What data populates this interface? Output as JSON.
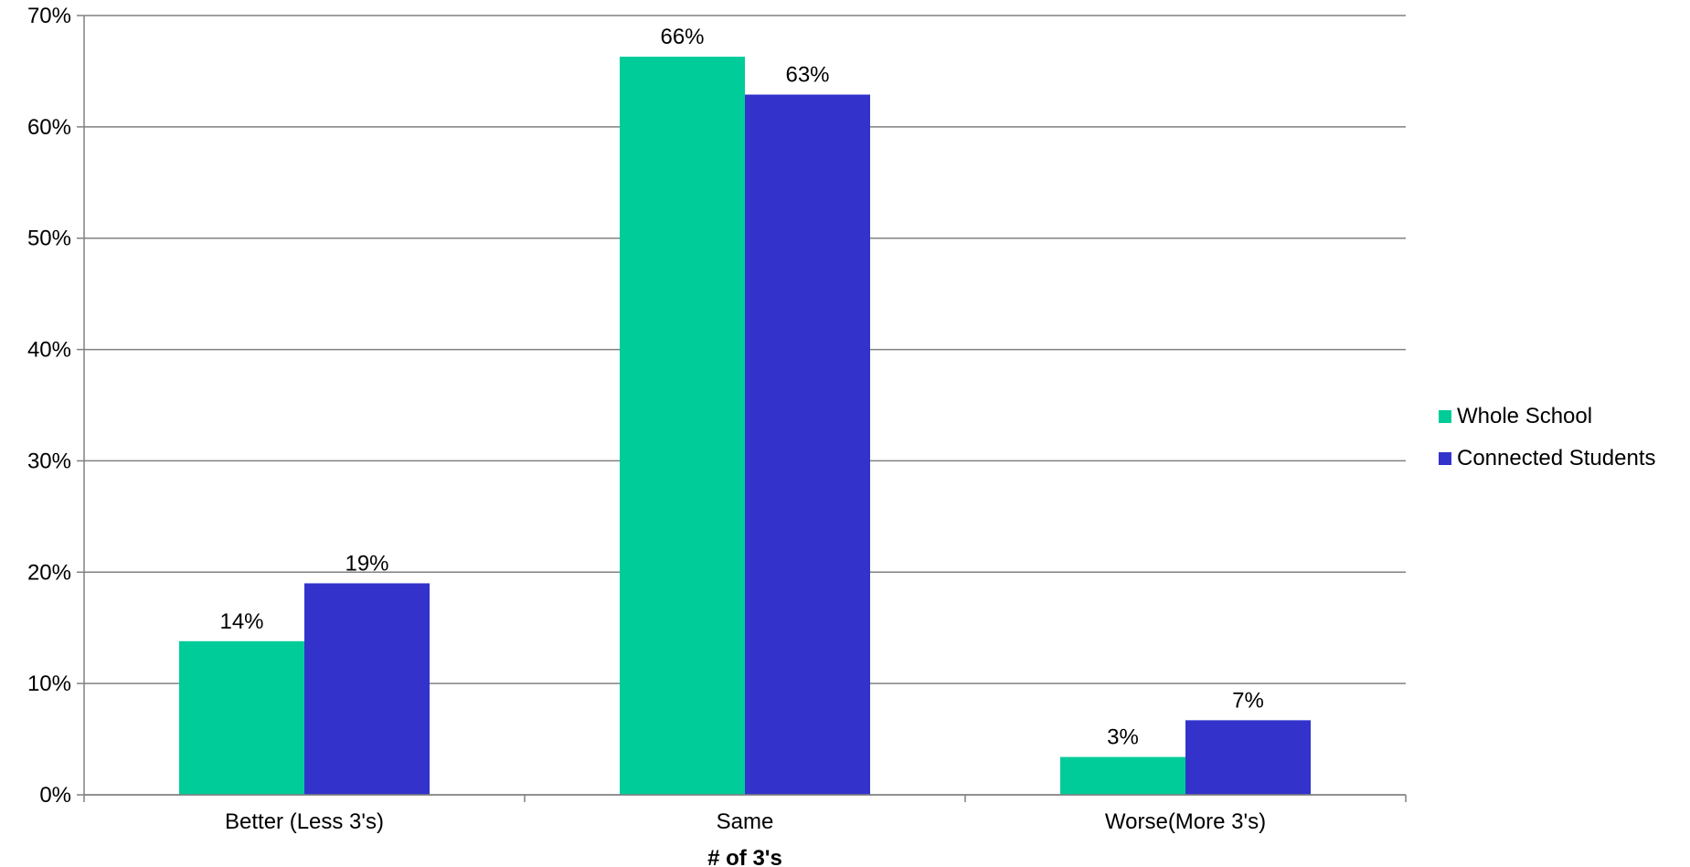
{
  "chart_data": {
    "type": "bar",
    "title": "",
    "xlabel": "# of 3's",
    "ylabel": "",
    "categories": [
      "Better (Less 3's)",
      "Same",
      "Worse(More 3's)"
    ],
    "series": [
      {
        "name": "Whole School",
        "color": "#00CC99",
        "values": [
          13.8,
          66.3,
          3.4
        ],
        "labels": [
          "14%",
          "66%",
          "3%"
        ]
      },
      {
        "name": "Connected Students",
        "color": "#3333CC",
        "values": [
          19.0,
          62.9,
          6.7
        ],
        "labels": [
          "19%",
          "63%",
          "7%"
        ]
      }
    ],
    "ylim": [
      0,
      70
    ],
    "y_ticks": [
      0,
      10,
      20,
      30,
      40,
      50,
      60,
      70
    ],
    "y_tick_labels": [
      "0%",
      "10%",
      "20%",
      "30%",
      "40%",
      "50%",
      "60%",
      "70%"
    ],
    "grid": true,
    "gridline_color": "#808080",
    "legend_position": "right"
  }
}
